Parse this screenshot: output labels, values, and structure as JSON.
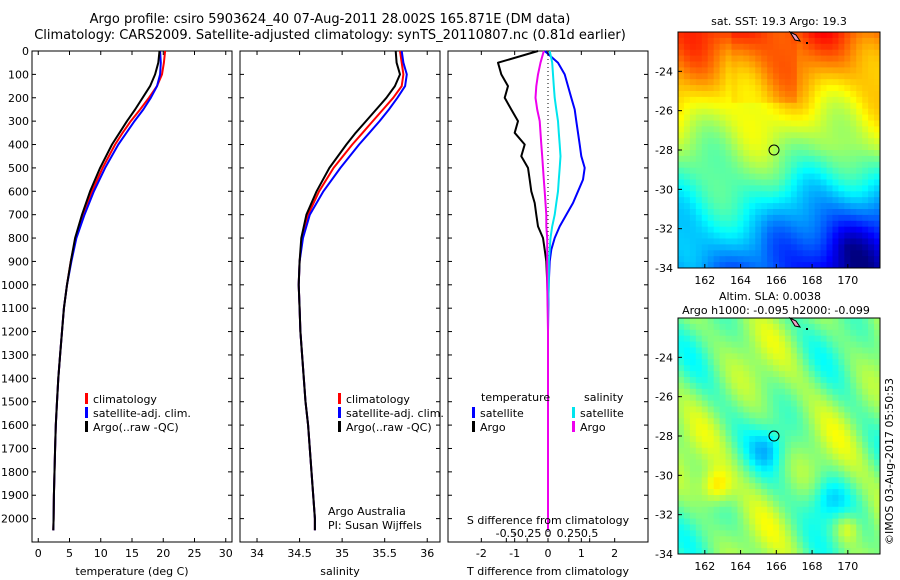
{
  "title": {
    "line1": "Argo profile: csiro 5903624_40 07-Aug-2011 28.002S 165.871E (DM data)",
    "line2": "Climatology: CARS2009. Satellite-adjusted climatology: synTS_20110807.nc (0.81d earlier)"
  },
  "watermark": "©IMOS 03-Aug-2017 05:50:53",
  "colors": {
    "climatology": "#ff0000",
    "satellite": "#0000ff",
    "argo": "#000000",
    "s_satellite": "#00e5ee",
    "s_argo": "#ee00ee"
  },
  "chart_data": [
    {
      "type": "line",
      "id": "temperature",
      "xlabel": "temperature (deg C)",
      "ylim": [
        2100,
        0
      ],
      "xlim": [
        -1,
        31
      ],
      "x_ticks": [
        "0",
        "5",
        "10",
        "15",
        "20",
        "25",
        "30"
      ],
      "y_ticks": [
        "0",
        "100",
        "200",
        "300",
        "400",
        "500",
        "600",
        "700",
        "800",
        "900",
        "1000",
        "1100",
        "1200",
        "1300",
        "1400",
        "1500",
        "1600",
        "1700",
        "1800",
        "1900",
        "2000"
      ],
      "depth": [
        0,
        50,
        100,
        150,
        200,
        250,
        300,
        350,
        400,
        500,
        600,
        700,
        800,
        900,
        1000,
        1100,
        1200,
        1300,
        1400,
        1500,
        1600,
        1700,
        1800,
        1900,
        2000,
        2050
      ],
      "series": [
        {
          "name": "climatology",
          "color_key": "climatology",
          "values": [
            20.3,
            20.1,
            19.8,
            19.0,
            17.7,
            16.3,
            14.8,
            13.5,
            12.3,
            10.3,
            8.6,
            7.2,
            6.0,
            5.2,
            4.6,
            4.1,
            3.8,
            3.5,
            3.2,
            3.0,
            2.8,
            2.7,
            2.6,
            2.5,
            2.45,
            2.4
          ]
        },
        {
          "name": "satellite-adj. clim.",
          "color_key": "satellite",
          "values": [
            19.5,
            19.6,
            19.5,
            19.0,
            18.0,
            16.8,
            15.4,
            14.1,
            12.8,
            10.7,
            8.9,
            7.4,
            6.1,
            5.3,
            4.6,
            4.1,
            3.8,
            3.5,
            3.2,
            3.0,
            2.8,
            2.7,
            2.6,
            2.5,
            2.45,
            2.4
          ]
        },
        {
          "name": "Argo(..raw -QC)",
          "color_key": "argo",
          "values": [
            19.4,
            19.2,
            18.7,
            17.9,
            16.7,
            15.5,
            14.2,
            13.0,
            11.8,
            9.9,
            8.3,
            7.0,
            5.9,
            5.2,
            4.6,
            4.1,
            3.8,
            3.5,
            3.2,
            3.0,
            2.8,
            2.7,
            2.6,
            2.5,
            2.45,
            2.4
          ]
        }
      ],
      "legend": {
        "entries": [
          "climatology",
          "satellite-adj. clim.",
          "Argo(..raw -QC)"
        ],
        "color_keys": [
          "climatology",
          "satellite",
          "argo"
        ],
        "placement": "bottom-center"
      }
    },
    {
      "type": "line",
      "id": "salinity",
      "xlabel": "salinity",
      "ylim": [
        2100,
        0
      ],
      "xlim": [
        33.8,
        36.15
      ],
      "x_ticks": [
        "34",
        "34.5",
        "35",
        "35.5",
        "36"
      ],
      "depth": [
        0,
        50,
        100,
        150,
        200,
        250,
        300,
        350,
        400,
        500,
        600,
        700,
        800,
        900,
        1000,
        1100,
        1200,
        1300,
        1400,
        1500,
        1600,
        1700,
        1800,
        1900,
        2000,
        2050
      ],
      "series": [
        {
          "name": "climatology",
          "color_key": "climatology",
          "values": [
            35.68,
            35.7,
            35.72,
            35.7,
            35.6,
            35.48,
            35.36,
            35.24,
            35.12,
            34.9,
            34.73,
            34.6,
            34.53,
            34.5,
            34.49,
            34.5,
            34.51,
            34.53,
            34.55,
            34.57,
            34.6,
            34.62,
            34.64,
            34.66,
            34.68,
            34.68
          ]
        },
        {
          "name": "satellite-adj. clim.",
          "color_key": "satellite",
          "values": [
            35.7,
            35.72,
            35.76,
            35.74,
            35.65,
            35.55,
            35.44,
            35.32,
            35.2,
            34.98,
            34.78,
            34.62,
            34.54,
            34.5,
            34.49,
            34.5,
            34.51,
            34.53,
            34.55,
            34.57,
            34.6,
            34.62,
            34.64,
            34.66,
            34.68,
            34.68
          ]
        },
        {
          "name": "Argo(..raw -QC)",
          "color_key": "argo",
          "values": [
            35.63,
            35.64,
            35.68,
            35.62,
            35.52,
            35.4,
            35.28,
            35.16,
            35.05,
            34.85,
            34.7,
            34.58,
            34.52,
            34.5,
            34.49,
            34.5,
            34.51,
            34.53,
            34.55,
            34.57,
            34.6,
            34.62,
            34.64,
            34.66,
            34.68,
            34.68
          ]
        }
      ],
      "legend": {
        "entries": [
          "climatology",
          "satellite-adj. clim.",
          "Argo(..raw -QC)"
        ],
        "color_keys": [
          "climatology",
          "satellite",
          "argo"
        ],
        "placement": "bottom-center"
      },
      "annotation": [
        "Argo Australia",
        "PI: Susan Wijffels"
      ]
    },
    {
      "type": "line",
      "id": "difference",
      "xlabel": "T difference from climatology",
      "x2label": "S difference from climatology",
      "ylim": [
        2100,
        0
      ],
      "xlim": [
        -3,
        3
      ],
      "x_ticks": [
        "-2",
        "-1",
        "0",
        "1",
        "2"
      ],
      "x2_ticks": [
        "-0.5",
        "-0.25",
        "0",
        "0.25",
        "0.5"
      ],
      "depth": [
        0,
        50,
        100,
        150,
        200,
        250,
        300,
        350,
        400,
        450,
        500,
        550,
        600,
        650,
        700,
        750,
        800,
        850,
        900,
        1000,
        1100,
        1200,
        1400,
        1600,
        1800,
        2000,
        2050
      ],
      "series": [
        {
          "name": "temperature satellite",
          "color_key": "satellite",
          "values": [
            -0.1,
            0.3,
            0.5,
            0.6,
            0.7,
            0.8,
            0.85,
            0.9,
            0.95,
            1.0,
            1.1,
            1.05,
            0.9,
            0.75,
            0.55,
            0.35,
            0.2,
            0.1,
            0.05,
            0.02,
            0.01,
            0,
            0,
            0,
            0,
            0,
            0
          ]
        },
        {
          "name": "temperature Argo",
          "color_key": "argo",
          "values": [
            -0.3,
            -1.5,
            -1.4,
            -1.2,
            -1.3,
            -1.1,
            -0.9,
            -1.0,
            -0.7,
            -0.8,
            -0.6,
            -0.55,
            -0.5,
            -0.4,
            -0.35,
            -0.3,
            -0.15,
            -0.1,
            -0.05,
            -0.02,
            0,
            0,
            0,
            0,
            0,
            0,
            0
          ]
        },
        {
          "name": "salinity satellite",
          "color_key": "s_satellite",
          "values": [
            0.02,
            0.05,
            0.06,
            0.07,
            0.08,
            0.1,
            0.12,
            0.13,
            0.14,
            0.15,
            0.14,
            0.13,
            0.12,
            0.1,
            0.08,
            0.05,
            0.03,
            0.02,
            0.01,
            0.01,
            0,
            0,
            0,
            0,
            0,
            0,
            0
          ]
        },
        {
          "name": "salinity Argo",
          "color_key": "s_argo",
          "values": [
            -0.05,
            -0.09,
            -0.12,
            -0.14,
            -0.15,
            -0.13,
            -0.1,
            -0.09,
            -0.08,
            -0.07,
            -0.06,
            -0.05,
            -0.04,
            -0.03,
            -0.02,
            -0.02,
            -0.01,
            -0.01,
            -0.01,
            -0.01,
            -0.005,
            0,
            0,
            0,
            0,
            0,
            0
          ]
        }
      ],
      "legend": {
        "temperature_title": "temperature",
        "salinity_title": "salinity",
        "entries": [
          "satellite",
          "Argo",
          "satellite",
          "Argo"
        ],
        "color_keys": [
          "satellite",
          "argo",
          "s_satellite",
          "s_argo"
        ],
        "placement": "bottom"
      }
    },
    {
      "type": "heatmap",
      "id": "sst_map",
      "title": "sat. SST: 19.3  Argo: 19.3",
      "xlim": [
        160.5,
        171.8
      ],
      "ylim": [
        -34,
        -22
      ],
      "x_ticks": [
        "162",
        "164",
        "166",
        "168",
        "170"
      ],
      "y_ticks": [
        "-24",
        "-26",
        "-28",
        "-30",
        "-32",
        "-34"
      ],
      "marker": {
        "lon": 165.871,
        "lat": -28.002
      }
    },
    {
      "type": "heatmap",
      "id": "sla_map",
      "title": "Altim. SLA: 0.0038",
      "subtitle": "Argo h1000: -0.095  h2000: -0.099",
      "xlim": [
        160.5,
        171.8
      ],
      "ylim": [
        -34,
        -22
      ],
      "x_ticks": [
        "162",
        "164",
        "166",
        "168",
        "170"
      ],
      "y_ticks": [
        "-24",
        "-26",
        "-28",
        "-30",
        "-32",
        "-34"
      ],
      "marker": {
        "lon": 165.871,
        "lat": -28.002
      }
    }
  ]
}
